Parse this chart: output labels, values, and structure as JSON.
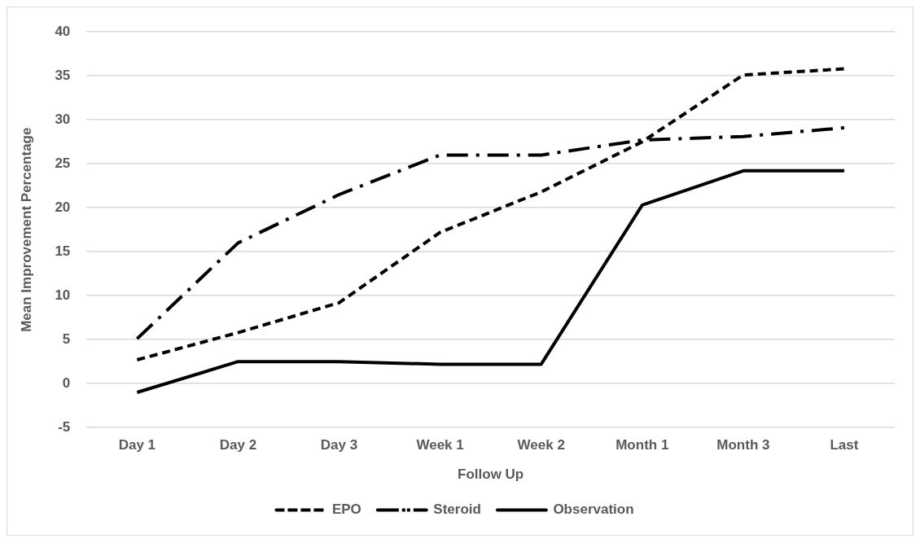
{
  "chart_data": {
    "type": "line",
    "xlabel": "Follow Up",
    "ylabel": "Mean Improvement Percentage",
    "categories": [
      "Day 1",
      "Day 2",
      "Day 3",
      "Week 1",
      "Week 2",
      "Month 1",
      "Month 3",
      "Last"
    ],
    "series": [
      {
        "name": "EPO",
        "color": "#000000",
        "line_style": "dashed",
        "values": [
          2.7,
          5.8,
          9.2,
          17.2,
          21.8,
          27.5,
          35.1,
          35.8
        ]
      },
      {
        "name": "Steroid",
        "color": "#000000",
        "line_style": "dashdot",
        "values": [
          5.1,
          16,
          21.5,
          26,
          26,
          27.7,
          28.1,
          29.1
        ]
      },
      {
        "name": "Observation",
        "color": "#000000",
        "line_style": "solid",
        "values": [
          -1,
          2.5,
          2.5,
          2.2,
          2.2,
          20.3,
          24.2,
          24.2
        ]
      }
    ],
    "ylim": [
      -5,
      40
    ],
    "yticks": [
      -5,
      0,
      5,
      10,
      15,
      20,
      25,
      30,
      35,
      40
    ],
    "grid": "y",
    "legend": "bottom",
    "marker": "none"
  }
}
